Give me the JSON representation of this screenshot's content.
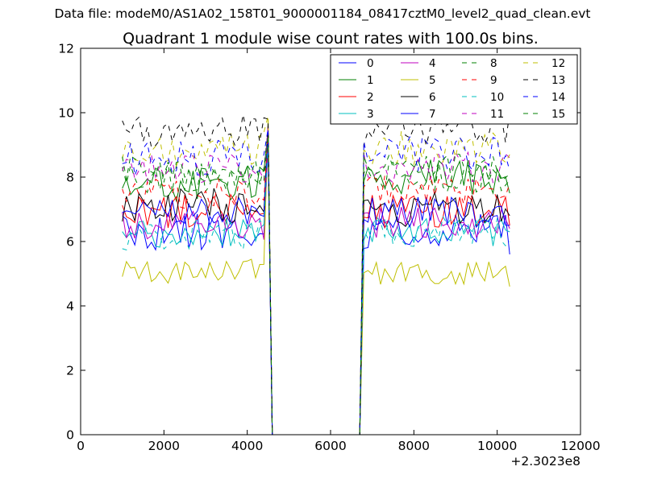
{
  "figure": {
    "suptitle": "Data file: modeM0/AS1A02_158T01_9000001184_08417cztM0_level2_quad_clean.evt"
  },
  "chart_data": {
    "type": "line",
    "title": "Quadrant 1 module wise count rates with 100.0s bins.",
    "xlabel": "",
    "ylabel": "",
    "x_offset_label": "+2.3023e8",
    "xlim": [
      0,
      12000
    ],
    "ylim": [
      0,
      12
    ],
    "xticks": [
      0,
      2000,
      4000,
      6000,
      8000,
      10000,
      12000
    ],
    "xtick_labels": [
      "0",
      "2000",
      "4000",
      "6000",
      "8000",
      "10000",
      "12000"
    ],
    "yticks": [
      0,
      2,
      4,
      6,
      8,
      10,
      12
    ],
    "ytick_labels": [
      "0",
      "2",
      "4",
      "6",
      "8",
      "10",
      "12"
    ],
    "legend_position": "top-right",
    "legend_columns": 4,
    "gaps": [
      [
        4700,
        6700
      ]
    ],
    "segment1": {
      "start": 1000,
      "end": 4500,
      "step": 100
    },
    "segment2": {
      "start": 6800,
      "end": 10300,
      "step": 100
    },
    "series": [
      {
        "name": "0",
        "color": "#0000ff",
        "dash": "solid",
        "mean1": 6.3,
        "mean2": 6.3,
        "last1": 9.0,
        "last2": 5.6,
        "amp": 0.35,
        "seed": 11
      },
      {
        "name": "1",
        "color": "#008000",
        "dash": "solid",
        "mean1": 7.8,
        "mean2": 8.0,
        "last1": 9.4,
        "last2": 7.5,
        "amp": 0.35,
        "seed": 23
      },
      {
        "name": "2",
        "color": "#ff0000",
        "dash": "solid",
        "mean1": 6.9,
        "mean2": 6.9,
        "last1": 9.2,
        "last2": 6.5,
        "amp": 0.35,
        "seed": 37
      },
      {
        "name": "3",
        "color": "#00bfbf",
        "dash": "solid",
        "mean1": 6.3,
        "mean2": 6.3,
        "last1": 9.1,
        "last2": 6.3,
        "amp": 0.3,
        "seed": 41
      },
      {
        "name": "4",
        "color": "#bf00bf",
        "dash": "solid",
        "mean1": 6.5,
        "mean2": 6.6,
        "last1": 9.0,
        "last2": 6.4,
        "amp": 0.3,
        "seed": 53
      },
      {
        "name": "5",
        "color": "#bfbf00",
        "dash": "solid",
        "mean1": 5.1,
        "mean2": 5.0,
        "last1": 9.8,
        "last2": 4.6,
        "amp": 0.25,
        "seed": 67
      },
      {
        "name": "6",
        "color": "#000000",
        "dash": "solid",
        "mean1": 7.1,
        "mean2": 7.0,
        "last1": 9.6,
        "last2": 6.8,
        "amp": 0.35,
        "seed": 71
      },
      {
        "name": "7",
        "color": "#0000ff",
        "dash": "solid",
        "mean1": 6.9,
        "mean2": 6.9,
        "last1": 9.3,
        "last2": 6.5,
        "amp": 0.3,
        "seed": 83
      },
      {
        "name": "8",
        "color": "#008000",
        "dash": "dashed",
        "mean1": 8.0,
        "mean2": 8.0,
        "last1": 9.5,
        "last2": 7.9,
        "amp": 0.3,
        "seed": 97
      },
      {
        "name": "9",
        "color": "#ff0000",
        "dash": "dashed",
        "mean1": 7.5,
        "mean2": 7.6,
        "last1": 9.4,
        "last2": 7.8,
        "amp": 0.3,
        "seed": 101
      },
      {
        "name": "10",
        "color": "#00bfbf",
        "dash": "dashed",
        "mean1": 6.2,
        "mean2": 6.3,
        "last1": 9.0,
        "last2": 6.0,
        "amp": 0.3,
        "seed": 113
      },
      {
        "name": "11",
        "color": "#bf00bf",
        "dash": "dashed",
        "mean1": 8.3,
        "mean2": 8.3,
        "last1": 9.6,
        "last2": 8.6,
        "amp": 0.3,
        "seed": 127
      },
      {
        "name": "12",
        "color": "#bfbf00",
        "dash": "dashed",
        "mean1": 8.9,
        "mean2": 8.9,
        "last1": 9.9,
        "last2": 8.7,
        "amp": 0.35,
        "seed": 131
      },
      {
        "name": "13",
        "color": "#000000",
        "dash": "dashed",
        "mean1": 9.4,
        "mean2": 9.5,
        "last1": 9.8,
        "last2": 10.0,
        "amp": 0.35,
        "seed": 139
      },
      {
        "name": "14",
        "color": "#0000ff",
        "dash": "dashed",
        "mean1": 8.6,
        "mean2": 8.7,
        "last1": 9.5,
        "last2": 8.2,
        "amp": 0.35,
        "seed": 149
      },
      {
        "name": "15",
        "color": "#008000",
        "dash": "dashed",
        "mean1": 8.2,
        "mean2": 8.3,
        "last1": 9.3,
        "last2": 8.1,
        "amp": 0.3,
        "seed": 157
      }
    ]
  }
}
